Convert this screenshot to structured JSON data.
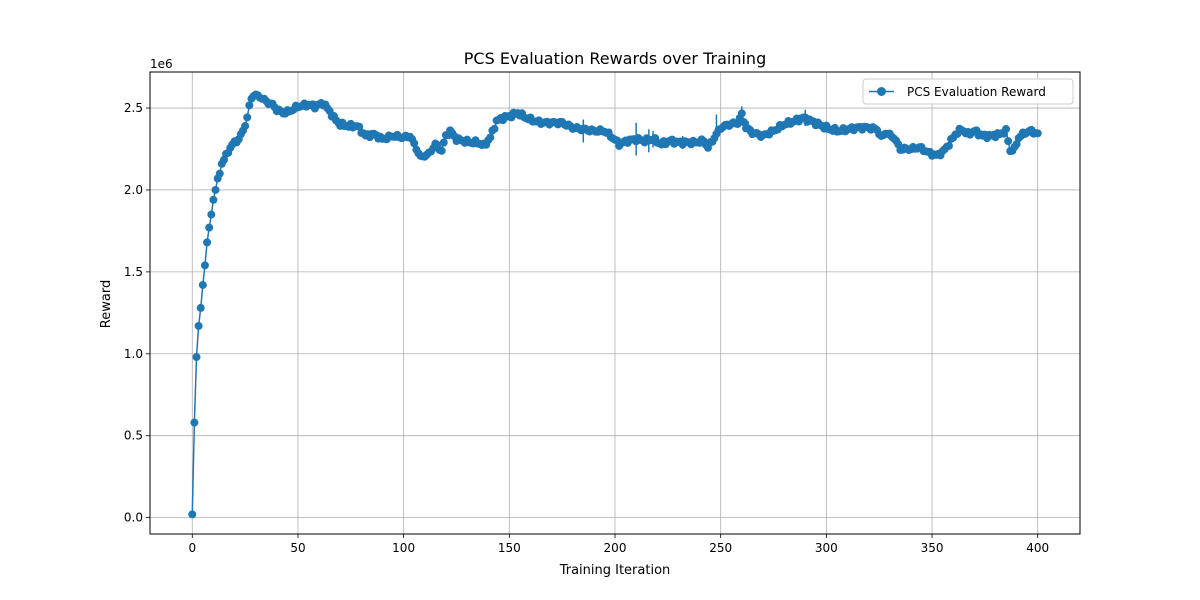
{
  "chart_data": {
    "type": "line",
    "title": "PCS Evaluation Rewards over Training",
    "xlabel": "Training Iteration",
    "ylabel": "Reward",
    "y_offset_label": "1e6",
    "xlim": [
      -20,
      420
    ],
    "ylim": [
      -0.1,
      2.72
    ],
    "y_scale_factor": 1000000,
    "x_ticks": [
      0,
      50,
      100,
      150,
      200,
      250,
      300,
      350,
      400
    ],
    "y_ticks": [
      0.0,
      0.5,
      1.0,
      1.5,
      2.0,
      2.5
    ],
    "y_tick_labels": [
      "0.0",
      "0.5",
      "1.0",
      "1.5",
      "2.0",
      "2.5"
    ],
    "grid": true,
    "legend_position": "top-right",
    "colors": {
      "series": "#1f77b4",
      "grid": "#b0b0b0"
    },
    "series": [
      {
        "name": "PCS Evaluation Reward",
        "knots": [
          [
            0,
            0.02
          ],
          [
            1,
            0.58
          ],
          [
            2,
            0.98
          ],
          [
            3,
            1.17
          ],
          [
            4,
            1.28
          ],
          [
            5,
            1.42
          ],
          [
            6,
            1.54
          ],
          [
            7,
            1.68
          ],
          [
            8,
            1.77
          ],
          [
            9,
            1.85
          ],
          [
            10,
            1.94
          ],
          [
            11,
            2.0
          ],
          [
            12,
            2.07
          ],
          [
            13,
            2.1
          ],
          [
            14,
            2.16
          ],
          [
            16,
            2.21
          ],
          [
            18,
            2.26
          ],
          [
            20,
            2.29
          ],
          [
            22,
            2.31
          ],
          [
            24,
            2.36
          ],
          [
            26,
            2.44
          ],
          [
            27,
            2.51
          ],
          [
            28,
            2.56
          ],
          [
            29,
            2.58
          ],
          [
            32,
            2.57
          ],
          [
            35,
            2.54
          ],
          [
            38,
            2.52
          ],
          [
            40,
            2.49
          ],
          [
            43,
            2.47
          ],
          [
            46,
            2.48
          ],
          [
            50,
            2.51
          ],
          [
            55,
            2.52
          ],
          [
            58,
            2.51
          ],
          [
            62,
            2.53
          ],
          [
            65,
            2.48
          ],
          [
            67,
            2.44
          ],
          [
            70,
            2.4
          ],
          [
            74,
            2.39
          ],
          [
            78,
            2.39
          ],
          [
            82,
            2.33
          ],
          [
            86,
            2.34
          ],
          [
            90,
            2.31
          ],
          [
            95,
            2.33
          ],
          [
            100,
            2.32
          ],
          [
            103,
            2.33
          ],
          [
            105,
            2.28
          ],
          [
            108,
            2.2
          ],
          [
            112,
            2.22
          ],
          [
            115,
            2.28
          ],
          [
            118,
            2.24
          ],
          [
            120,
            2.33
          ],
          [
            122,
            2.36
          ],
          [
            125,
            2.31
          ],
          [
            128,
            2.3
          ],
          [
            132,
            2.29
          ],
          [
            135,
            2.29
          ],
          [
            138,
            2.27
          ],
          [
            141,
            2.32
          ],
          [
            144,
            2.42
          ],
          [
            147,
            2.44
          ],
          [
            150,
            2.45
          ],
          [
            154,
            2.47
          ],
          [
            158,
            2.44
          ],
          [
            162,
            2.42
          ],
          [
            166,
            2.41
          ],
          [
            170,
            2.41
          ],
          [
            175,
            2.41
          ],
          [
            180,
            2.38
          ],
          [
            185,
            2.37
          ],
          [
            190,
            2.36
          ],
          [
            195,
            2.36
          ],
          [
            198,
            2.33
          ],
          [
            202,
            2.28
          ],
          [
            206,
            2.3
          ],
          [
            210,
            2.31
          ],
          [
            214,
            2.3
          ],
          [
            218,
            2.31
          ],
          [
            222,
            2.28
          ],
          [
            226,
            2.3
          ],
          [
            230,
            2.29
          ],
          [
            234,
            2.29
          ],
          [
            238,
            2.29
          ],
          [
            242,
            2.3
          ],
          [
            244,
            2.26
          ],
          [
            247,
            2.32
          ],
          [
            250,
            2.38
          ],
          [
            254,
            2.4
          ],
          [
            258,
            2.41
          ],
          [
            260,
            2.46
          ],
          [
            262,
            2.38
          ],
          [
            265,
            2.35
          ],
          [
            270,
            2.33
          ],
          [
            275,
            2.36
          ],
          [
            280,
            2.4
          ],
          [
            285,
            2.42
          ],
          [
            289,
            2.44
          ],
          [
            293,
            2.42
          ],
          [
            298,
            2.39
          ],
          [
            302,
            2.37
          ],
          [
            306,
            2.36
          ],
          [
            310,
            2.37
          ],
          [
            315,
            2.38
          ],
          [
            320,
            2.38
          ],
          [
            324,
            2.37
          ],
          [
            326,
            2.32
          ],
          [
            328,
            2.35
          ],
          [
            332,
            2.32
          ],
          [
            335,
            2.25
          ],
          [
            340,
            2.25
          ],
          [
            344,
            2.26
          ],
          [
            348,
            2.23
          ],
          [
            352,
            2.21
          ],
          [
            355,
            2.23
          ],
          [
            358,
            2.28
          ],
          [
            361,
            2.34
          ],
          [
            364,
            2.37
          ],
          [
            367,
            2.34
          ],
          [
            370,
            2.36
          ],
          [
            374,
            2.33
          ],
          [
            378,
            2.33
          ],
          [
            382,
            2.34
          ],
          [
            385,
            2.36
          ],
          [
            387,
            2.24
          ],
          [
            389,
            2.25
          ],
          [
            391,
            2.32
          ],
          [
            394,
            2.35
          ],
          [
            397,
            2.36
          ],
          [
            400,
            2.34
          ]
        ],
        "error_bars": [
          [
            185,
            2.36,
            0.07
          ],
          [
            210,
            2.31,
            0.1
          ],
          [
            216,
            2.3,
            0.07
          ],
          [
            218,
            2.31,
            0.05
          ],
          [
            248,
            2.4,
            0.06
          ],
          [
            260,
            2.46,
            0.05
          ],
          [
            263,
            2.38,
            0.04
          ],
          [
            290,
            2.44,
            0.05
          ],
          [
            232,
            2.29,
            0.04
          ]
        ]
      }
    ]
  }
}
